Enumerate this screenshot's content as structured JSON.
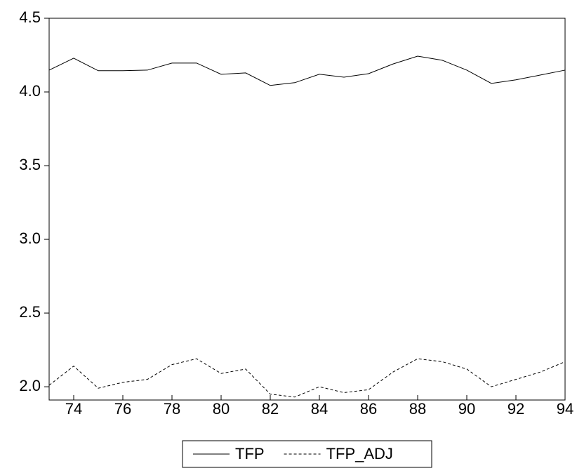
{
  "chart_data": {
    "type": "line",
    "x": [
      73,
      74,
      75,
      76,
      77,
      78,
      79,
      80,
      81,
      82,
      83,
      84,
      85,
      86,
      87,
      88,
      89,
      90,
      91,
      92,
      93,
      94
    ],
    "series": [
      {
        "name": "TFP",
        "color": "#000000",
        "line_style": "solid",
        "values": [
          4.148,
          4.229,
          4.144,
          4.144,
          4.148,
          4.196,
          4.196,
          4.12,
          4.129,
          4.044,
          4.063,
          4.12,
          4.1,
          4.124,
          4.19,
          4.243,
          4.215,
          4.148,
          4.058,
          4.082,
          4.115,
          4.148
        ]
      },
      {
        "name": "TFP_ADJ",
        "color": "#000000",
        "line_style": "dashed",
        "values": [
          2.01,
          2.14,
          1.99,
          2.03,
          2.05,
          2.15,
          2.19,
          2.09,
          2.12,
          1.95,
          1.93,
          2.0,
          1.96,
          1.98,
          2.1,
          2.19,
          2.17,
          2.12,
          2.0,
          2.05,
          2.1,
          2.17
        ]
      }
    ],
    "xlim": [
      73,
      94
    ],
    "xticks": [
      74,
      76,
      78,
      80,
      82,
      84,
      86,
      88,
      90,
      92,
      94
    ],
    "ylim": [
      1.91,
      4.5
    ],
    "yticks": [
      {
        "value": 2.0,
        "label": "2.0"
      },
      2.5,
      {
        "value": 3.0,
        "label": "3.0"
      },
      3.5,
      {
        "value": 4.0,
        "label": "4.0"
      },
      4.5
    ],
    "grid": false,
    "legend": "bottom"
  }
}
